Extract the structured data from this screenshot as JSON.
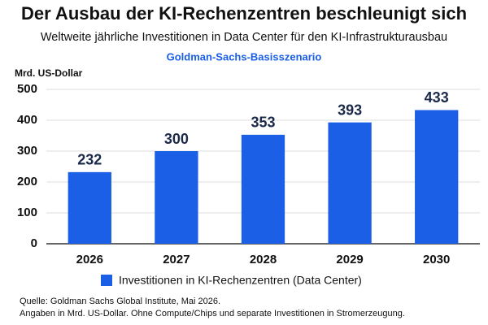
{
  "chart_data": {
    "type": "bar",
    "title": "Der Ausbau der KI-Rechenzentren beschleunigt sich",
    "subtitle": "Weltweite jährliche Investitionen in Data Center für den KI-Infrastrukturausbau",
    "scenario": "Goldman-Sachs-Basisszenario",
    "y_label": "Mrd. US-Dollar",
    "categories": [
      "2026",
      "2027",
      "2028",
      "2029",
      "2030"
    ],
    "series": [
      {
        "name": "Investitionen in KI-Rechenzentren (Data Center)",
        "color": "#1a5fe6",
        "values": [
          232,
          300,
          353,
          393,
          433
        ]
      }
    ],
    "ylim": [
      0,
      500
    ],
    "yticks": [
      0,
      100,
      200,
      300,
      400,
      500
    ],
    "grid": true,
    "legend": "bottom",
    "notes": [
      "Quelle: Goldman Sachs Global Institute, Mai 2026.",
      "Angaben in Mrd. US-Dollar. Ohne Compute/Chips und separate Investitionen in Stromerzeugung."
    ]
  }
}
